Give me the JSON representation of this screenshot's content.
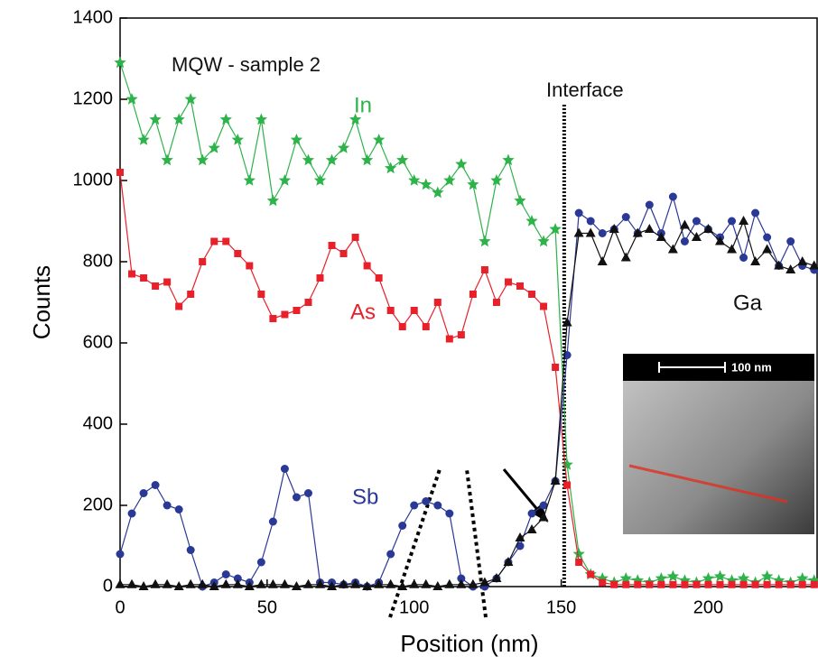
{
  "chart_data": {
    "type": "line",
    "x_label": "Position (nm)",
    "y_label": "Counts",
    "annotations": [
      {
        "text": "MQW - sample 2",
        "color": "#111111"
      },
      {
        "text": "In",
        "color": "#2db34a"
      },
      {
        "text": "As",
        "color": "#e8202a"
      },
      {
        "text": "Sb",
        "color": "#2a3896"
      },
      {
        "text": "Ga",
        "color": "#111111"
      },
      {
        "text": "Interface",
        "color": "#111111"
      },
      {
        "text": "100 nm",
        "color": "#ffffff"
      }
    ],
    "interface_x": 151,
    "x": [
      0,
      4,
      8,
      12,
      16,
      20,
      24,
      28,
      32,
      36,
      40,
      44,
      48,
      52,
      56,
      60,
      64,
      68,
      72,
      76,
      80,
      84,
      88,
      92,
      96,
      100,
      104,
      108,
      112,
      116,
      120,
      124,
      128,
      132,
      136,
      140,
      144,
      148,
      152,
      156,
      160,
      164,
      168,
      172,
      176,
      180,
      184,
      188,
      192,
      196,
      200,
      204,
      208,
      212,
      216,
      220,
      224,
      228,
      232,
      236
    ],
    "series": [
      {
        "name": "In",
        "color": "#2db34a",
        "marker": "star",
        "values": [
          1290,
          1200,
          1100,
          1150,
          1050,
          1150,
          1200,
          1050,
          1080,
          1150,
          1100,
          1000,
          1150,
          950,
          1000,
          1100,
          1050,
          1000,
          1050,
          1080,
          1150,
          1050,
          1100,
          1030,
          1050,
          1000,
          990,
          970,
          1000,
          1040,
          990,
          850,
          1000,
          1050,
          950,
          900,
          850,
          880,
          300,
          80,
          30,
          20,
          10,
          20,
          15,
          10,
          20,
          25,
          15,
          10,
          20,
          25,
          15,
          20,
          10,
          25,
          15,
          10,
          20,
          15
        ]
      },
      {
        "name": "As",
        "color": "#e8202a",
        "marker": "square",
        "values": [
          1020,
          770,
          760,
          740,
          750,
          690,
          720,
          800,
          850,
          850,
          820,
          790,
          720,
          660,
          670,
          680,
          700,
          760,
          840,
          820,
          860,
          790,
          760,
          680,
          640,
          680,
          640,
          700,
          610,
          620,
          720,
          780,
          700,
          750,
          740,
          720,
          690,
          540,
          250,
          60,
          30,
          10,
          5,
          5,
          5,
          5,
          5,
          5,
          5,
          5,
          5,
          5,
          5,
          5,
          5,
          5,
          5,
          5,
          5,
          5
        ]
      },
      {
        "name": "Sb",
        "color": "#2a3896",
        "marker": "circle",
        "values": [
          80,
          180,
          230,
          250,
          200,
          190,
          90,
          0,
          10,
          30,
          20,
          10,
          60,
          160,
          290,
          220,
          230,
          10,
          10,
          5,
          10,
          0,
          10,
          80,
          150,
          200,
          210,
          200,
          180,
          20,
          0,
          0,
          20,
          60,
          100,
          180,
          200,
          260,
          570,
          920,
          900,
          870,
          880,
          910,
          870,
          940,
          870,
          960,
          850,
          900,
          880,
          860,
          900,
          810,
          920,
          860,
          790,
          850,
          790,
          780
        ]
      },
      {
        "name": "Ga",
        "color": "#111111",
        "marker": "triangle",
        "values": [
          5,
          5,
          0,
          5,
          5,
          0,
          5,
          5,
          0,
          5,
          5,
          0,
          5,
          5,
          5,
          0,
          5,
          5,
          0,
          5,
          5,
          0,
          5,
          5,
          0,
          5,
          5,
          0,
          5,
          5,
          5,
          10,
          20,
          60,
          120,
          140,
          170,
          260,
          650,
          870,
          870,
          800,
          880,
          810,
          870,
          880,
          860,
          830,
          890,
          860,
          880,
          850,
          830,
          900,
          800,
          830,
          790,
          780,
          800,
          790
        ]
      }
    ],
    "xlim": [
      0,
      237
    ],
    "ylim": [
      0,
      1400
    ],
    "xticks": [
      0,
      50,
      100,
      150,
      200
    ],
    "yticks": [
      0,
      200,
      400,
      600,
      800,
      1000,
      1200,
      1400
    ]
  }
}
